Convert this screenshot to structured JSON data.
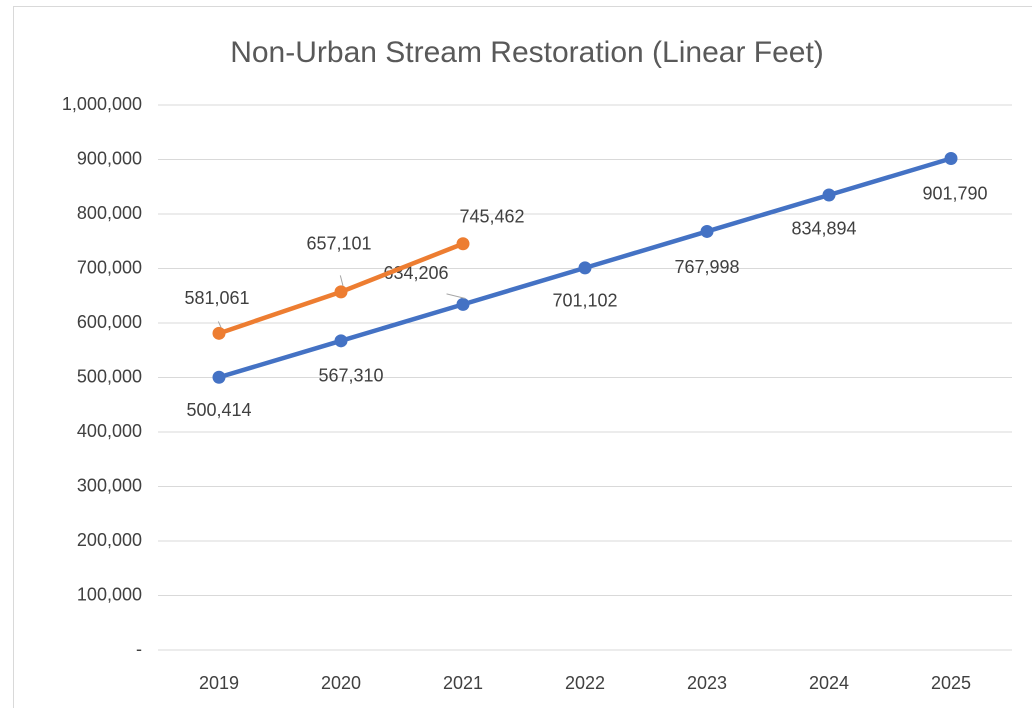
{
  "chart_data": {
    "type": "line",
    "title": "Non-Urban Stream Restoration (Linear Feet)",
    "categories": [
      "2019",
      "2020",
      "2021",
      "2022",
      "2023",
      "2024",
      "2025"
    ],
    "series": [
      {
        "color": "#4472c4",
        "values": [
          500414,
          567310,
          634206,
          701102,
          767998,
          834894,
          901790
        ],
        "value_labels": [
          "500,414",
          "567,310",
          "634,206",
          "701,102",
          "767,998",
          "834,894",
          "901,790"
        ]
      },
      {
        "color": "#ed7d31",
        "values": [
          581061,
          657101,
          745462,
          null,
          null,
          null,
          null
        ],
        "value_labels": [
          "581,061",
          "657,101",
          "745,462",
          null,
          null,
          null,
          null
        ]
      }
    ],
    "ylim": [
      0,
      1000000
    ],
    "yticks": [
      {
        "value": 0,
        "label": "-"
      },
      {
        "value": 100000,
        "label": "100,000"
      },
      {
        "value": 200000,
        "label": "200,000"
      },
      {
        "value": 300000,
        "label": "300,000"
      },
      {
        "value": 400000,
        "label": "400,000"
      },
      {
        "value": 500000,
        "label": "500,000"
      },
      {
        "value": 600000,
        "label": "600,000"
      },
      {
        "value": 700000,
        "label": "700,000"
      },
      {
        "value": 800000,
        "label": "800,000"
      },
      {
        "value": 900000,
        "label": "900,000"
      },
      {
        "value": 1000000,
        "label": "1,000,000"
      }
    ],
    "grid": true
  }
}
